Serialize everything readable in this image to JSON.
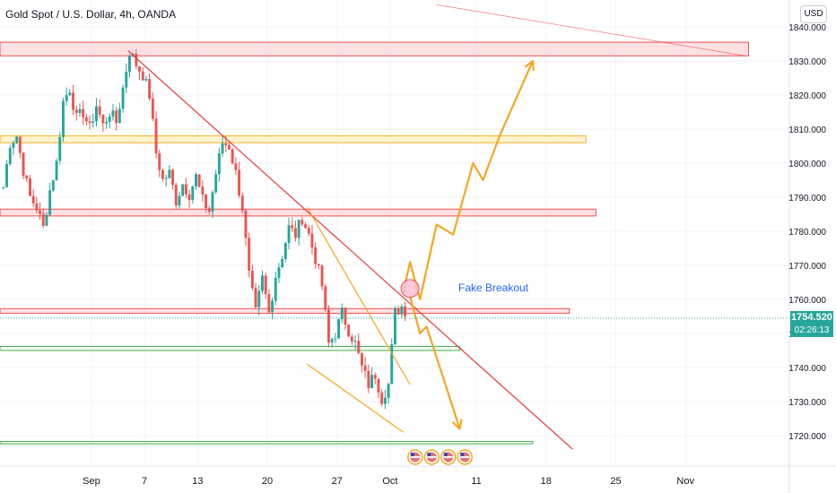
{
  "header": {
    "title": "Gold Spot / U.S. Dollar, 4h, OANDA"
  },
  "currency_button": "USD",
  "price_tag": {
    "price": "1754.520",
    "countdown": "02:26:13"
  },
  "annotation": "Fake Breakout",
  "colors": {
    "up": "#26a69a",
    "down": "#ef5350",
    "resistance": "#ef5350",
    "resistance_fill": "#ffcdd2",
    "supply": "#f0b429",
    "supply_fill": "#ffecb3",
    "support": "#4caf50",
    "support_fill": "#e8f5e9",
    "projection": "#f5a623",
    "trendline": "#e53935",
    "label": "#2962ff",
    "grid": "#f0f3fa"
  },
  "chart_data": {
    "type": "candlestick",
    "title": "Gold Spot / U.S. Dollar, 4h, OANDA",
    "ylim": [
      1712,
      1842
    ],
    "y_ticks": [
      1720,
      1730,
      1740,
      1750,
      1760,
      1770,
      1780,
      1790,
      1800,
      1810,
      1820,
      1830,
      1840
    ],
    "y_tick_labels": [
      "1720.000",
      "1730.000",
      "1740.000",
      "1750.000",
      "1760.000",
      "1770.000",
      "1780.000",
      "1790.000",
      "1800.000",
      "1810.000",
      "1820.000",
      "1830.000",
      "1840.000"
    ],
    "x_ticks": [
      {
        "label": "Sep",
        "bar": 27
      },
      {
        "label": "7",
        "bar": 43
      },
      {
        "label": "13",
        "bar": 59
      },
      {
        "label": "20",
        "bar": 80
      },
      {
        "label": "27",
        "bar": 101
      },
      {
        "label": "Oct",
        "bar": 117
      },
      {
        "label": "11",
        "bar": 143
      },
      {
        "label": "18",
        "bar": 164
      },
      {
        "label": "25",
        "bar": 185
      },
      {
        "label": "Nov",
        "bar": 206
      }
    ],
    "x_range": [
      0,
      220
    ],
    "grid": true,
    "anchors": [
      [
        0,
        1793
      ],
      [
        2,
        1806
      ],
      [
        4,
        1808
      ],
      [
        6,
        1798
      ],
      [
        8,
        1790
      ],
      [
        10,
        1787
      ],
      [
        12,
        1781
      ],
      [
        14,
        1792
      ],
      [
        16,
        1800
      ],
      [
        18,
        1818
      ],
      [
        20,
        1822
      ],
      [
        22,
        1813
      ],
      [
        24,
        1815
      ],
      [
        26,
        1810
      ],
      [
        28,
        1817
      ],
      [
        30,
        1811
      ],
      [
        32,
        1815
      ],
      [
        34,
        1812
      ],
      [
        36,
        1822
      ],
      [
        38,
        1833
      ],
      [
        40,
        1829
      ],
      [
        42,
        1826
      ],
      [
        44,
        1820
      ],
      [
        46,
        1803
      ],
      [
        48,
        1795
      ],
      [
        50,
        1797
      ],
      [
        52,
        1789
      ],
      [
        54,
        1794
      ],
      [
        56,
        1791
      ],
      [
        58,
        1796
      ],
      [
        60,
        1789
      ],
      [
        62,
        1786
      ],
      [
        64,
        1797
      ],
      [
        66,
        1806
      ],
      [
        68,
        1805
      ],
      [
        70,
        1797
      ],
      [
        72,
        1787
      ],
      [
        74,
        1767
      ],
      [
        76,
        1756
      ],
      [
        78,
        1766
      ],
      [
        80,
        1756
      ],
      [
        82,
        1767
      ],
      [
        84,
        1773
      ],
      [
        86,
        1781
      ],
      [
        88,
        1779
      ],
      [
        90,
        1784
      ],
      [
        92,
        1779
      ],
      [
        94,
        1772
      ],
      [
        96,
        1764
      ],
      [
        98,
        1747
      ],
      [
        100,
        1750
      ],
      [
        102,
        1756
      ],
      [
        104,
        1751
      ],
      [
        106,
        1747
      ],
      [
        108,
        1740
      ],
      [
        110,
        1735
      ],
      [
        112,
        1738
      ],
      [
        114,
        1731
      ],
      [
        116,
        1735
      ],
      [
        118,
        1756
      ],
      [
        120,
        1758
      ],
      [
        121,
        1755
      ]
    ],
    "levels": [
      {
        "kind": "resistance",
        "from": 1835.5,
        "to": 1831.5,
        "x_end": 225
      },
      {
        "kind": "supply",
        "from": 1808,
        "to": 1806,
        "x_end": 176
      },
      {
        "kind": "resistance",
        "from": 1786.5,
        "to": 1784.5,
        "x_end": 179
      },
      {
        "kind": "resistance",
        "from": 1757.3,
        "to": 1755.9,
        "x_end": 171
      },
      {
        "kind": "support",
        "from": 1746.2,
        "to": 1745,
        "x_end": 138
      },
      {
        "kind": "support",
        "from": 1718.3,
        "to": 1717.6,
        "x_end": 160
      }
    ],
    "trendlines": [
      {
        "name": "descending",
        "color": "trendline",
        "points": [
          [
            38,
            1833
          ],
          [
            172,
            1716
          ]
        ]
      },
      {
        "name": "upper-right",
        "color": "trendline",
        "points": [
          [
            131,
            1846.5
          ],
          [
            224,
            1831.5
          ]
        ]
      },
      {
        "name": "channel-top",
        "color": "projection",
        "points": [
          [
            92,
            1787
          ],
          [
            123,
            1735
          ]
        ]
      },
      {
        "name": "channel-bottom",
        "color": "projection",
        "points": [
          [
            92,
            1741
          ],
          [
            121,
            1721
          ]
        ]
      }
    ],
    "projections": [
      {
        "name": "bullish",
        "points": [
          [
            121,
            1762
          ],
          [
            123,
            1771
          ],
          [
            126,
            1760
          ],
          [
            131,
            1782
          ],
          [
            136,
            1779
          ],
          [
            142,
            1800
          ],
          [
            145,
            1795
          ],
          [
            150,
            1808
          ],
          [
            160,
            1830
          ]
        ]
      },
      {
        "name": "bearish",
        "points": [
          [
            123,
            1761
          ],
          [
            126,
            1750
          ],
          [
            128,
            1752
          ],
          [
            138,
            1722
          ]
        ]
      }
    ],
    "fake_breakout_marker": {
      "bar": 123,
      "price": 1763.2
    },
    "last_price": 1754.52
  }
}
